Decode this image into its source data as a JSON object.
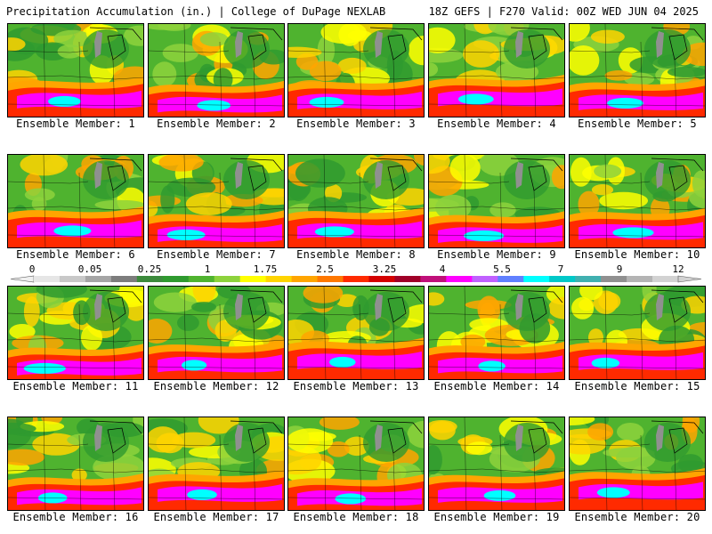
{
  "header": {
    "left": "Precipitation Accumulation (in.) | College of DuPage NEXLAB",
    "right": "18Z GEFS | F270 Valid: 00Z WED JUN 04 2025"
  },
  "colorbar": {
    "labels": [
      "0",
      "0.05",
      "0.25",
      "1",
      "1.75",
      "2.5",
      "3.25",
      "4",
      "5.5",
      "7",
      "9",
      "12"
    ],
    "colors": [
      "#e6e6e6",
      "#c8c8c8",
      "#a5a5a5",
      "#7d7d7d",
      "#3c8a3c",
      "#2f9a2f",
      "#4fb32f",
      "#8dd23c",
      "#ffff00",
      "#ffd400",
      "#ffa500",
      "#ff7800",
      "#ff2a00",
      "#d40000",
      "#a00028",
      "#c0107a",
      "#ff00ff",
      "#c060ff",
      "#6080ff",
      "#00ffff",
      "#00c8c8",
      "#40b0b0",
      "#909090",
      "#b4b4b4",
      "#d2d2d2"
    ]
  },
  "panels": [
    {
      "caption": "Ensemble Member: 1"
    },
    {
      "caption": "Ensemble Member: 2"
    },
    {
      "caption": "Ensemble Member: 3"
    },
    {
      "caption": "Ensemble Member: 4"
    },
    {
      "caption": "Ensemble Member: 5"
    },
    {
      "caption": "Ensemble Member: 6"
    },
    {
      "caption": "Ensemble Member: 7"
    },
    {
      "caption": "Ensemble Member: 8"
    },
    {
      "caption": "Ensemble Member: 9"
    },
    {
      "caption": "Ensemble Member: 10"
    },
    {
      "caption": "Ensemble Member: 11"
    },
    {
      "caption": "Ensemble Member: 12"
    },
    {
      "caption": "Ensemble Member: 13"
    },
    {
      "caption": "Ensemble Member: 14"
    },
    {
      "caption": "Ensemble Member: 15"
    },
    {
      "caption": "Ensemble Member: 16"
    },
    {
      "caption": "Ensemble Member: 17"
    },
    {
      "caption": "Ensemble Member: 18"
    },
    {
      "caption": "Ensemble Member: 19"
    },
    {
      "caption": "Ensemble Member: 20"
    }
  ]
}
